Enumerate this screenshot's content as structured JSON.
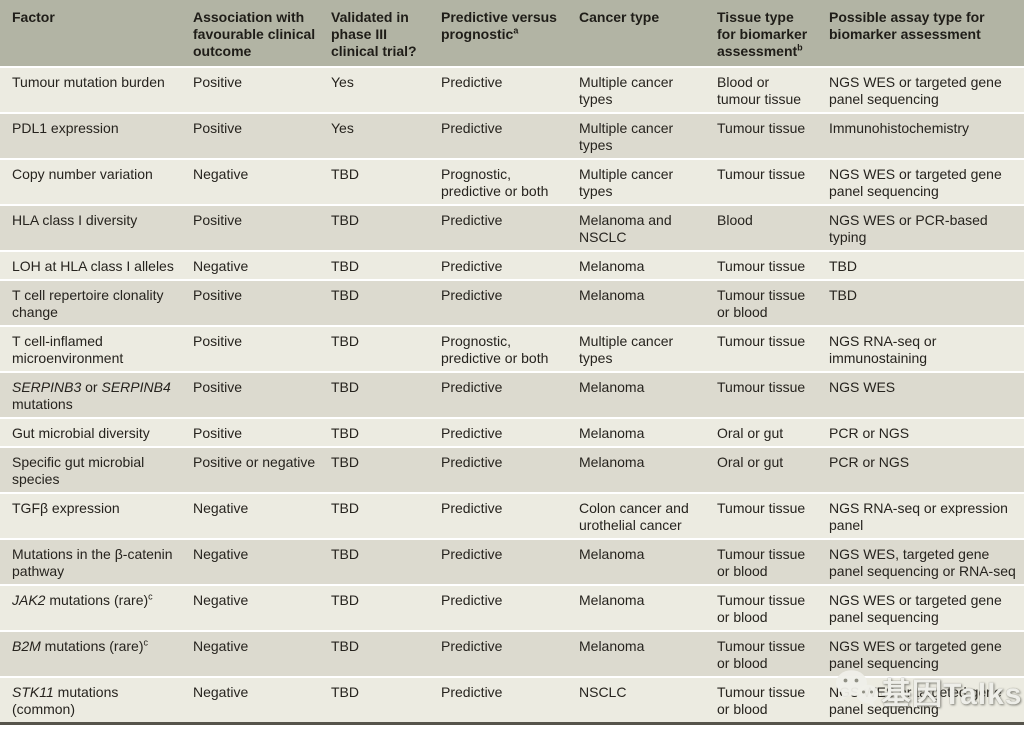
{
  "table": {
    "header": {
      "columns": [
        {
          "label": "Factor",
          "sup": ""
        },
        {
          "label": "Association with favourable clinical outcome",
          "sup": ""
        },
        {
          "label": "Validated in phase III clinical trial?",
          "sup": ""
        },
        {
          "label": "Predictive versus prognostic",
          "sup": "a"
        },
        {
          "label": "Cancer type",
          "sup": ""
        },
        {
          "label": "Tissue type for biomarker assessment",
          "sup": "b"
        },
        {
          "label": "Possible assay type for biomarker assessment",
          "sup": ""
        }
      ]
    },
    "rows": [
      {
        "factor": [
          {
            "t": "Tumour mutation burden"
          }
        ],
        "association": "Positive",
        "validated": "Yes",
        "predictive": "Predictive",
        "cancer_type": "Multiple cancer types",
        "tissue_type": "Blood or tumour tissue",
        "assay_type": "NGS WES or targeted gene panel sequencing"
      },
      {
        "factor": [
          {
            "t": "PDL1 expression"
          }
        ],
        "association": "Positive",
        "validated": "Yes",
        "predictive": "Predictive",
        "cancer_type": "Multiple cancer types",
        "tissue_type": "Tumour tissue",
        "assay_type": "Immunohistochemistry"
      },
      {
        "factor": [
          {
            "t": "Copy number variation"
          }
        ],
        "association": "Negative",
        "validated": "TBD",
        "predictive": "Prognostic, predictive or both",
        "cancer_type": "Multiple cancer types",
        "tissue_type": "Tumour tissue",
        "assay_type": "NGS WES or targeted gene panel sequencing"
      },
      {
        "factor": [
          {
            "t": "HLA class I diversity"
          }
        ],
        "association": "Positive",
        "validated": "TBD",
        "predictive": "Predictive",
        "cancer_type": "Melanoma and NSCLC",
        "tissue_type": "Blood",
        "assay_type": "NGS WES or PCR-based typing"
      },
      {
        "factor": [
          {
            "t": "LOH at HLA class I alleles"
          }
        ],
        "association": "Negative",
        "validated": "TBD",
        "predictive": "Predictive",
        "cancer_type": "Melanoma",
        "tissue_type": "Tumour tissue",
        "assay_type": "TBD"
      },
      {
        "factor": [
          {
            "t": "T cell repertoire clonality change"
          }
        ],
        "association": "Positive",
        "validated": "TBD",
        "predictive": "Predictive",
        "cancer_type": "Melanoma",
        "tissue_type": "Tumour tissue or blood",
        "assay_type": "TBD"
      },
      {
        "factor": [
          {
            "t": "T cell-inflamed microenvironment"
          }
        ],
        "association": "Positive",
        "validated": "TBD",
        "predictive": "Prognostic, predictive or both",
        "cancer_type": "Multiple cancer types",
        "tissue_type": "Tumour tissue",
        "assay_type": "NGS RNA-seq or immunostaining"
      },
      {
        "factor": [
          {
            "t": "SERPINB3",
            "i": true
          },
          {
            "t": " or "
          },
          {
            "t": "SERPINB4",
            "i": true
          },
          {
            "t": " mutations"
          }
        ],
        "association": "Positive",
        "validated": "TBD",
        "predictive": "Predictive",
        "cancer_type": "Melanoma",
        "tissue_type": "Tumour tissue",
        "assay_type": "NGS WES"
      },
      {
        "factor": [
          {
            "t": "Gut microbial diversity"
          }
        ],
        "association": "Positive",
        "validated": "TBD",
        "predictive": "Predictive",
        "cancer_type": "Melanoma",
        "tissue_type": "Oral or gut",
        "assay_type": "PCR or NGS"
      },
      {
        "factor": [
          {
            "t": "Specific gut microbial species"
          }
        ],
        "association": "Positive or negative",
        "validated": "TBD",
        "predictive": "Predictive",
        "cancer_type": "Melanoma",
        "tissue_type": "Oral or gut",
        "assay_type": "PCR or NGS"
      },
      {
        "factor": [
          {
            "t": "TGFβ expression"
          }
        ],
        "association": "Negative",
        "validated": "TBD",
        "predictive": "Predictive",
        "cancer_type": "Colon cancer and urothelial cancer",
        "tissue_type": "Tumour tissue",
        "assay_type": "NGS RNA-seq or expression panel"
      },
      {
        "factor": [
          {
            "t": "Mutations in the β-catenin pathway"
          }
        ],
        "association": "Negative",
        "validated": "TBD",
        "predictive": "Predictive",
        "cancer_type": "Melanoma",
        "tissue_type": "Tumour tissue or blood",
        "assay_type": "NGS WES, targeted gene panel sequencing or RNA-seq"
      },
      {
        "factor": [
          {
            "t": "JAK2",
            "i": true
          },
          {
            "t": " mutations (rare)"
          },
          {
            "t": "c",
            "sup": true
          }
        ],
        "association": "Negative",
        "validated": "TBD",
        "predictive": "Predictive",
        "cancer_type": "Melanoma",
        "tissue_type": "Tumour tissue or blood",
        "assay_type": "NGS WES or targeted gene panel sequencing"
      },
      {
        "factor": [
          {
            "t": "B2M",
            "i": true
          },
          {
            "t": " mutations (rare)"
          },
          {
            "t": "c",
            "sup": true
          }
        ],
        "association": "Negative",
        "validated": "TBD",
        "predictive": "Predictive",
        "cancer_type": "Melanoma",
        "tissue_type": "Tumour tissue or blood",
        "assay_type": "NGS WES or targeted gene panel sequencing"
      },
      {
        "factor": [
          {
            "t": "STK11",
            "i": true
          },
          {
            "t": " mutations (common)"
          }
        ],
        "association": "Negative",
        "validated": "TBD",
        "predictive": "Predictive",
        "cancer_type": "NSCLC",
        "tissue_type": "Tumour tissue or blood",
        "assay_type": "NGS WES or targeted gene panel sequencing"
      }
    ]
  },
  "watermark": {
    "text": "基因Talks",
    "icon": "wechat-icon"
  },
  "colors": {
    "header_bg": "#b2b4a4",
    "row_light": "#ecebe1",
    "row_dark": "#dcdacf",
    "text": "#26231e",
    "bottom_rule": "#56544b",
    "watermark": "#eeeee9"
  }
}
